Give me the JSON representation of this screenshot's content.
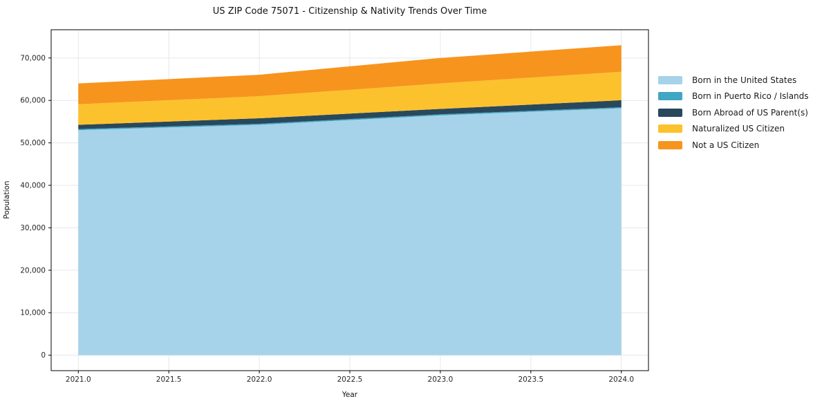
{
  "title": "US ZIP Code 75071 - Citizenship & Nativity Trends Over Time",
  "chart_data": {
    "type": "area",
    "stacked": true,
    "title": "US ZIP Code 75071 - Citizenship & Nativity Trends Over Time",
    "xlabel": "Year",
    "ylabel": "Population",
    "x": [
      2021,
      2022,
      2023,
      2024
    ],
    "series": [
      {
        "id": "born-us",
        "name": "Born in the United States",
        "color": "#A6D3EA",
        "values": [
          53000,
          54250,
          56480,
          58160
        ]
      },
      {
        "id": "born-pr",
        "name": "Born in Puerto Rico / Islands",
        "color": "#3FA6C3",
        "values": [
          250,
          250,
          250,
          250
        ]
      },
      {
        "id": "born-abroad",
        "name": "Born Abroad of US Parent(s)",
        "color": "#29485C",
        "values": [
          1010,
          1300,
          1270,
          1640
        ]
      },
      {
        "id": "naturalized",
        "name": "Naturalized US Citizen",
        "color": "#FCC22E",
        "values": [
          4840,
          5200,
          6000,
          6700
        ]
      },
      {
        "id": "not-citizen",
        "name": "Not a US Citizen",
        "color": "#F7941E",
        "values": [
          4900,
          5050,
          6000,
          6250
        ]
      }
    ],
    "totals_by_year": [
      64000,
      66050,
      70000,
      73000
    ],
    "xlim": [
      2020.85,
      2024.15
    ],
    "ylim": [
      -3650,
      76650
    ],
    "xticks": {
      "values": [
        2021,
        2021.5,
        2022,
        2022.5,
        2023,
        2023.5,
        2024
      ],
      "labels": [
        "2021.0",
        "2021.5",
        "2022.0",
        "2022.5",
        "2023.0",
        "2023.5",
        "2024.0"
      ]
    },
    "yticks": {
      "values": [
        0,
        10000,
        20000,
        30000,
        40000,
        50000,
        60000,
        70000
      ],
      "labels": [
        "0",
        "10,000",
        "20,000",
        "30,000",
        "40,000",
        "50,000",
        "60,000",
        "70,000"
      ]
    },
    "grid": true,
    "legend_position": "right-outside"
  },
  "style": {
    "grid_color": "#e7e7e7",
    "spine_color": "#000000",
    "tick_label_color": "#262626",
    "background": "#ffffff"
  }
}
